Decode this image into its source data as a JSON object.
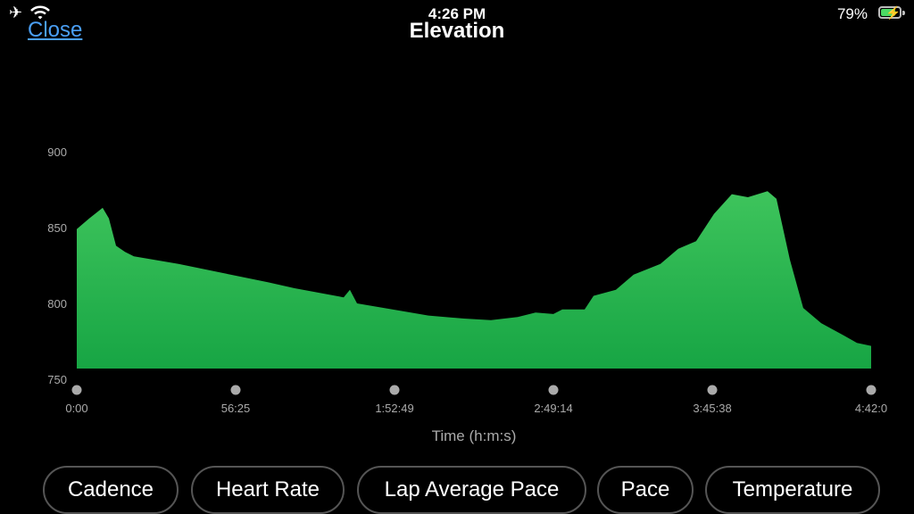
{
  "status_bar": {
    "time": "4:26 PM",
    "battery_percent": "79%",
    "battery_level": 0.79,
    "charging": true,
    "icons": [
      "airplane-icon",
      "wifi-icon",
      "battery-charging-icon"
    ]
  },
  "header": {
    "close_label": "Close",
    "title": "Elevation"
  },
  "colors": {
    "accent": "#4a9ff5",
    "fill_top": "#3ec45c",
    "fill_bottom": "#17a544",
    "battery": "#4cd964"
  },
  "chart_data": {
    "type": "area",
    "title": "Elevation",
    "xlabel": "Time (h:m:s)",
    "ylabel": "",
    "ylim": [
      750,
      900
    ],
    "yticks": [
      "750",
      "800",
      "850",
      "900"
    ],
    "xticks": [
      "0:00",
      "56:25",
      "1:52:49",
      "2:49:14",
      "3:45:38",
      "4:42:0"
    ],
    "grid": false,
    "x": [
      "0:00:00",
      "0:04:26",
      "0:09:11",
      "0:11:24",
      "0:13:56",
      "0:17:06",
      "0:20:17",
      "0:36:07",
      "0:51:58",
      "1:07:48",
      "1:17:19",
      "1:34:44",
      "1:36:57",
      "1:39:29",
      "1:55:20",
      "2:04:50",
      "2:17:31",
      "2:27:02",
      "2:36:32",
      "2:42:52",
      "2:49:12",
      "2:52:22",
      "3:00:17",
      "3:03:27",
      "3:11:22",
      "3:17:42",
      "3:27:12",
      "3:33:32",
      "3:39:52",
      "3:46:13",
      "3:52:33",
      "3:58:15",
      "4:05:13",
      "4:08:23",
      "4:13:08",
      "4:17:54",
      "4:24:15",
      "4:32:10",
      "4:36:55",
      "4:42:00"
    ],
    "values": [
      849,
      856,
      863,
      856,
      838,
      834,
      831,
      826,
      820,
      814,
      810,
      804,
      809,
      800,
      795,
      792,
      790,
      789,
      791,
      794,
      793,
      796,
      796,
      805,
      809,
      819,
      826,
      836,
      841,
      859,
      872,
      870,
      874,
      869,
      829,
      797,
      787,
      779,
      774,
      772
    ]
  },
  "metric_buttons": [
    "Cadence",
    "Heart Rate",
    "Lap Average Pace",
    "Pace",
    "Temperature"
  ]
}
